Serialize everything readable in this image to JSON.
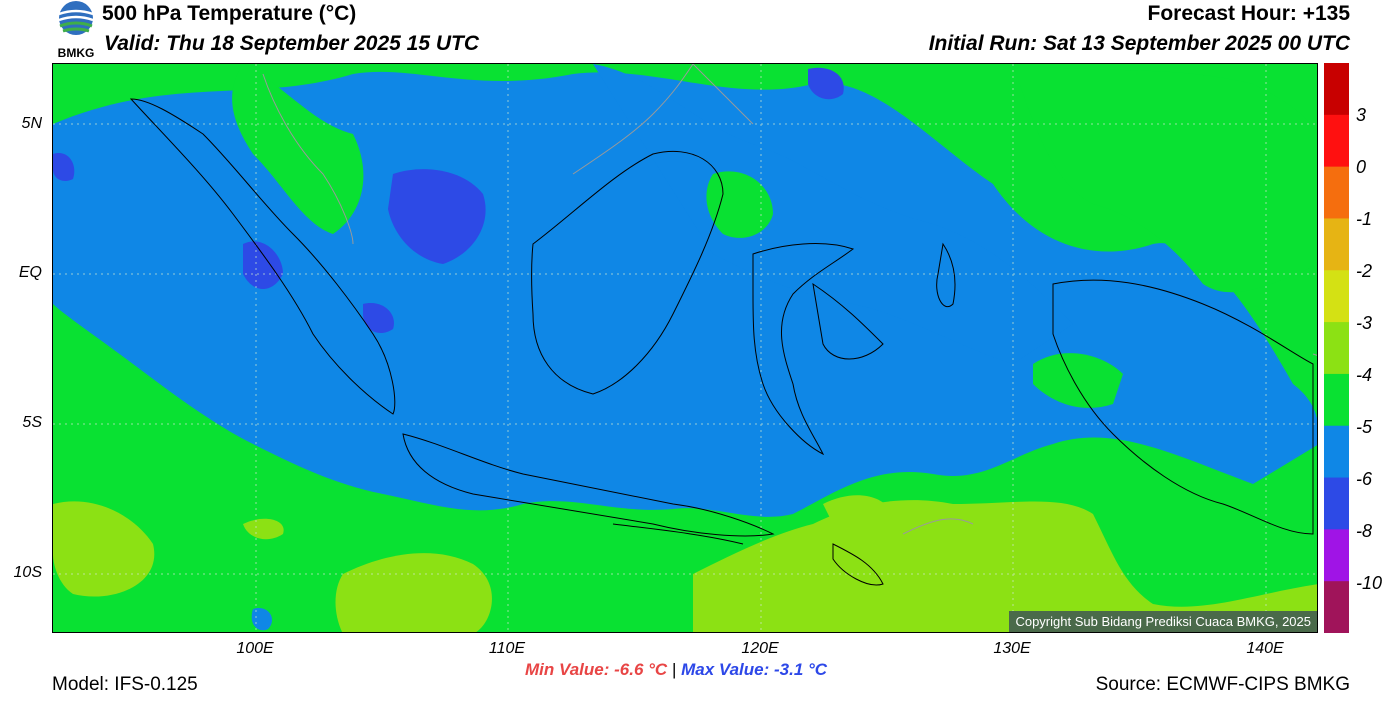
{
  "header": {
    "title": "500 hPa Temperature (°C)",
    "valid": "Valid: Thu 18 September 2025 15 UTC",
    "forecast_hour": "Forecast Hour: +135",
    "initial_run": "Initial Run: Sat 13 September 2025 00 UTC",
    "logo_text": "BMKG"
  },
  "map": {
    "lat_labels": [
      "5N",
      "EQ",
      "5S",
      "10S"
    ],
    "lon_labels": [
      "100E",
      "110E",
      "120E",
      "130E",
      "140E"
    ],
    "copyright": "Copyright Sub Bidang Prediksi Cuaca BMKG, 2025"
  },
  "colorbar": {
    "labels": [
      "3",
      "0",
      "-1",
      "-2",
      "-3",
      "-4",
      "-5",
      "-6",
      "-8",
      "-10"
    ],
    "colors": [
      "#c80000",
      "#ff1010",
      "#f56e0e",
      "#e6b414",
      "#d4e114",
      "#8ce114",
      "#09e132",
      "#0f87e6",
      "#2d4ae6",
      "#a014e6",
      "#a0145a"
    ]
  },
  "stats": {
    "min_label": "Min Value: -6.6 °C",
    "separator": "|",
    "max_label": "Max Value: -3.1 °C"
  },
  "footer": {
    "model": "Model: IFS-0.125",
    "source": "Source: ECMWF-CIPS BMKG"
  }
}
